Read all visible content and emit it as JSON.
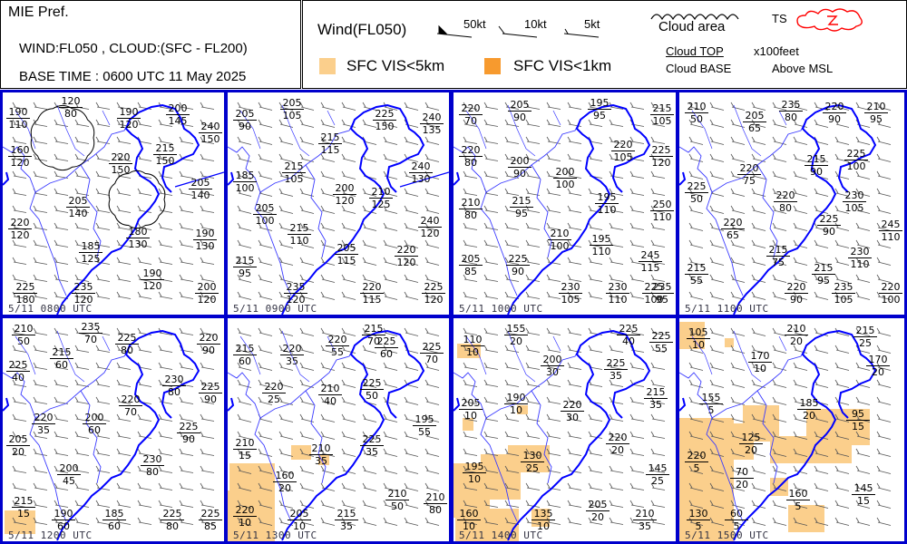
{
  "header": {
    "pref": "MIE Pref.",
    "desc": "WIND:FL050 , CLOUD:(SFC - FL200)",
    "base_time": "BASE TIME : 0600 UTC 11 May 2025"
  },
  "legend": {
    "wind_title": "Wind(FL050)",
    "barb_50": "50kt",
    "barb_10": "10kt",
    "barb_5": "5kt",
    "cloud_area": "Cloud area",
    "ts": "TS",
    "cloud_top": "Cloud TOP",
    "cloud_base": "Cloud BASE",
    "units": "x100feet",
    "above": "Above MSL",
    "vis5": "SFC VIS<5km",
    "vis1": "SFC VIS<1km"
  },
  "colors": {
    "vis5": "#fbcf8c",
    "vis1": "#f79a2e",
    "coast": "#0000ff",
    "border": "#3a3aff",
    "ts": "#ff0000"
  },
  "panels": [
    {
      "time": "5/11 0800 UTC",
      "stations": [
        {
          "top": "190",
          "base": "110"
        },
        {
          "top": "120",
          "base": "80"
        },
        {
          "top": "190",
          "base": "120"
        },
        {
          "top": "200",
          "base": "145"
        },
        {
          "top": "240",
          "base": "150"
        },
        {
          "top": "160",
          "base": "120"
        },
        {
          "top": "220",
          "base": "150"
        },
        {
          "top": "215",
          "base": "150"
        },
        {
          "top": "205",
          "base": "140"
        },
        {
          "top": "205",
          "base": "140"
        },
        {
          "top": "220",
          "base": "120"
        },
        {
          "top": "180",
          "base": "130"
        },
        {
          "top": "190",
          "base": "130"
        },
        {
          "top": "185",
          "base": "125"
        },
        {
          "top": "190",
          "base": "120"
        },
        {
          "top": "225",
          "base": "180"
        },
        {
          "top": "235",
          "base": "120"
        },
        {
          "top": "200",
          "base": "120"
        }
      ]
    },
    {
      "time": "5/11 0900 UTC",
      "stations": [
        {
          "top": "205",
          "base": "90"
        },
        {
          "top": "205",
          "base": "105"
        },
        {
          "top": "225",
          "base": "150"
        },
        {
          "top": "240",
          "base": "135"
        },
        {
          "top": "215",
          "base": "115"
        },
        {
          "top": "215",
          "base": "105"
        },
        {
          "top": "185",
          "base": "100"
        },
        {
          "top": "240",
          "base": "130"
        },
        {
          "top": "200",
          "base": "120"
        },
        {
          "top": "210",
          "base": "125"
        },
        {
          "top": "205",
          "base": "100"
        },
        {
          "top": "215",
          "base": "110"
        },
        {
          "top": "240",
          "base": "120"
        },
        {
          "top": "205",
          "base": "115"
        },
        {
          "top": "220",
          "base": "120"
        },
        {
          "top": "215",
          "base": "95"
        },
        {
          "top": "235",
          "base": "120"
        },
        {
          "top": "220",
          "base": "115"
        },
        {
          "top": "225",
          "base": "120"
        }
      ]
    },
    {
      "time": "5/11 1000 UTC",
      "stations": [
        {
          "top": "220",
          "base": "70"
        },
        {
          "top": "205",
          "base": "90"
        },
        {
          "top": "195",
          "base": "95"
        },
        {
          "top": "215",
          "base": "105"
        },
        {
          "top": "220",
          "base": "80"
        },
        {
          "top": "220",
          "base": "105"
        },
        {
          "top": "225",
          "base": "120"
        },
        {
          "top": "200",
          "base": "90"
        },
        {
          "top": "200",
          "base": "100"
        },
        {
          "top": "210",
          "base": "80"
        },
        {
          "top": "215",
          "base": "95"
        },
        {
          "top": "195",
          "base": "110"
        },
        {
          "top": "250",
          "base": "110"
        },
        {
          "top": "210",
          "base": "100"
        },
        {
          "top": "195",
          "base": "110"
        },
        {
          "top": "205",
          "base": "85"
        },
        {
          "top": "225",
          "base": "90"
        },
        {
          "top": "245",
          "base": "115"
        },
        {
          "top": "230",
          "base": "105"
        },
        {
          "top": "230",
          "base": "110"
        },
        {
          "top": "225",
          "base": "100"
        },
        {
          "top": "235",
          "base": "95"
        }
      ]
    },
    {
      "time": "5/11 1100 UTC",
      "stations": [
        {
          "top": "210",
          "base": "50"
        },
        {
          "top": "205",
          "base": "65"
        },
        {
          "top": "235",
          "base": "80"
        },
        {
          "top": "220",
          "base": "90"
        },
        {
          "top": "210",
          "base": "95"
        },
        {
          "top": "215",
          "base": "90"
        },
        {
          "top": "225",
          "base": "100"
        },
        {
          "top": "220",
          "base": "75"
        },
        {
          "top": "225",
          "base": "50"
        },
        {
          "top": "220",
          "base": "80"
        },
        {
          "top": "230",
          "base": "105"
        },
        {
          "top": "225",
          "base": "90"
        },
        {
          "top": "220",
          "base": "65"
        },
        {
          "top": "245",
          "base": "110"
        },
        {
          "top": "215",
          "base": "75"
        },
        {
          "top": "230",
          "base": "110"
        },
        {
          "top": "215",
          "base": "55"
        },
        {
          "top": "215",
          "base": "95"
        },
        {
          "top": "220",
          "base": "90"
        },
        {
          "top": "235",
          "base": "105"
        },
        {
          "top": "220",
          "base": "100"
        }
      ]
    },
    {
      "time": "5/11 1200 UTC",
      "stations": [
        {
          "top": "210",
          "base": "50"
        },
        {
          "top": "235",
          "base": "70"
        },
        {
          "top": "225",
          "base": "80"
        },
        {
          "top": "220",
          "base": "90"
        },
        {
          "top": "225",
          "base": "40"
        },
        {
          "top": "215",
          "base": "60"
        },
        {
          "top": "230",
          "base": "80"
        },
        {
          "top": "225",
          "base": "90"
        },
        {
          "top": "220",
          "base": "70"
        },
        {
          "top": "220",
          "base": "35"
        },
        {
          "top": "200",
          "base": "60"
        },
        {
          "top": "225",
          "base": "90"
        },
        {
          "top": "205",
          "base": "20"
        },
        {
          "top": "230",
          "base": "80"
        },
        {
          "top": "200",
          "base": "45"
        },
        {
          "top": "215",
          "base": "15"
        },
        {
          "top": "185",
          "base": "60"
        },
        {
          "top": "225",
          "base": "80"
        },
        {
          "top": "225",
          "base": "85"
        },
        {
          "top": "190",
          "base": "60"
        }
      ]
    },
    {
      "time": "5/11 1300 UTC",
      "stations": [
        {
          "top": "215",
          "base": "60"
        },
        {
          "top": "220",
          "base": "35"
        },
        {
          "top": "220",
          "base": "55"
        },
        {
          "top": "225",
          "base": "60"
        },
        {
          "top": "225",
          "base": "70"
        },
        {
          "top": "220",
          "base": "25"
        },
        {
          "top": "225",
          "base": "50"
        },
        {
          "top": "210",
          "base": "40"
        },
        {
          "top": "195",
          "base": "55"
        },
        {
          "top": "210",
          "base": "15"
        },
        {
          "top": "225",
          "base": "35"
        },
        {
          "top": "210",
          "base": "35"
        },
        {
          "top": "160",
          "base": "20"
        },
        {
          "top": "210",
          "base": "50"
        },
        {
          "top": "210",
          "base": "80"
        },
        {
          "top": "220",
          "base": "10"
        },
        {
          "top": "205",
          "base": "10"
        },
        {
          "top": "215",
          "base": "35"
        },
        {
          "top": "215",
          "base": "70"
        }
      ]
    },
    {
      "time": "5/11 1400 UTC",
      "stations": [
        {
          "top": "110",
          "base": "10"
        },
        {
          "top": "155",
          "base": "20"
        },
        {
          "top": "225",
          "base": "40"
        },
        {
          "top": "225",
          "base": "55"
        },
        {
          "top": "200",
          "base": "30"
        },
        {
          "top": "225",
          "base": "35"
        },
        {
          "top": "215",
          "base": "35"
        },
        {
          "top": "190",
          "base": "10"
        },
        {
          "top": "220",
          "base": "30"
        },
        {
          "top": "205",
          "base": "10"
        },
        {
          "top": "220",
          "base": "20"
        },
        {
          "top": "130",
          "base": "25"
        },
        {
          "top": "195",
          "base": "10"
        },
        {
          "top": "145",
          "base": "25"
        },
        {
          "top": "205",
          "base": "20"
        },
        {
          "top": "135",
          "base": "10"
        },
        {
          "top": "210",
          "base": "35"
        },
        {
          "top": "160",
          "base": "10"
        }
      ]
    },
    {
      "time": "5/11 1500 UTC",
      "stations": [
        {
          "top": "105",
          "base": "10"
        },
        {
          "top": "210",
          "base": "20"
        },
        {
          "top": "215",
          "base": "25"
        },
        {
          "top": "170",
          "base": "10"
        },
        {
          "top": "170",
          "base": "20"
        },
        {
          "top": "155",
          "base": "5"
        },
        {
          "top": "185",
          "base": "20"
        },
        {
          "top": "95",
          "base": "15"
        },
        {
          "top": "125",
          "base": "20"
        },
        {
          "top": "220",
          "base": "5"
        },
        {
          "top": "70",
          "base": "20"
        },
        {
          "top": "160",
          "base": "5"
        },
        {
          "top": "145",
          "base": "15"
        },
        {
          "top": "130",
          "base": "5"
        },
        {
          "top": "60",
          "base": "5"
        }
      ]
    }
  ]
}
